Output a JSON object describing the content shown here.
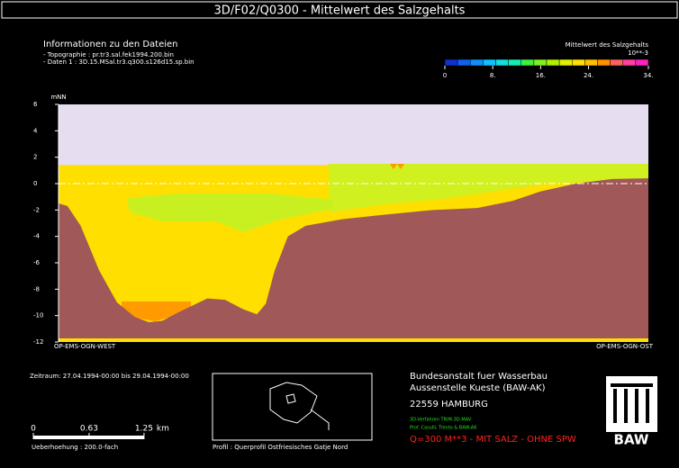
{
  "chart_data": {
    "type": "section",
    "title": "3D/F02/Q0300 - Mittelwert des Salzgehalts",
    "y_label": "mNN",
    "left_label": "OP-EMS-OGN-WEST",
    "right_label": "OP-EMS-OGN-OST",
    "ylim": [
      -12,
      6
    ],
    "yticks": [
      -12,
      -10,
      -8,
      -6,
      -4,
      -2,
      0,
      2,
      4,
      6
    ],
    "xlim": [
      0,
      6.66
    ],
    "x": [
      0,
      0.1,
      0.25,
      0.46,
      0.66,
      0.86,
      1.02,
      1.17,
      1.37,
      1.68,
      1.88,
      2.08,
      2.24,
      2.34,
      2.44,
      2.59,
      2.79,
      3.2,
      3.61,
      4.22,
      4.73,
      5.13,
      5.44,
      5.84,
      6.25,
      6.66
    ],
    "series": [
      {
        "name": "Topographie",
        "color": "#a05858",
        "values": [
          -1.5,
          -1.7,
          -3.2,
          -6.6,
          -9,
          -10.1,
          -10.5,
          -10.4,
          -9.7,
          -8.7,
          -8.8,
          -9.5,
          -9.9,
          -9.1,
          -6.6,
          -4,
          -3.2,
          -2.7,
          -2.4,
          -2,
          -1.85,
          -1.3,
          -0.6,
          0,
          0.35,
          0.4
        ]
      }
    ],
    "water_level": 1.4,
    "reference_line": 0,
    "colorbar": {
      "title": "Mittelwert des Salzgehalts",
      "unit": "10**-3",
      "clim": [
        0,
        34
      ],
      "colors": [
        "#1030d0",
        "#1060f0",
        "#1090ff",
        "#10c0ff",
        "#10e0e0",
        "#10f0b0",
        "#40f040",
        "#80f020",
        "#b0f000",
        "#e0f000",
        "#ffe000",
        "#ffc000",
        "#ff9000",
        "#ff6060",
        "#ff40a0",
        "#ff20c0"
      ],
      "ticks": [
        0,
        {
          "value": 8,
          "label": "8."
        },
        {
          "value": 16,
          "label": "16."
        },
        {
          "value": 24,
          "label": "24."
        },
        {
          "value": 34,
          "label": "34."
        }
      ]
    },
    "scale_bar": {
      "ticks": [
        0,
        0.63,
        1.25
      ],
      "unit": "km"
    }
  },
  "info": {
    "heading": "Informationen zu den Dateien",
    "lines": [
      "- Topographie : pr.tr3.sal.fek1994.200.bin",
      "- Daten 1 : 3D.15.MSal.tr3.q300.s126d15.sp.bin"
    ]
  },
  "footer": {
    "period": "Zeitraum: 27.04.1994-00:00 bis 29.04.1994-00:00",
    "exaggeration": "Ueberhoehung :   200.0-fach",
    "profile": "Profil : Querprofil Ostfriesisches Gatje Nord",
    "institute": [
      "Bundesanstalt fuer Wasserbau",
      "Aussenstelle Kueste (BAW-AK)",
      "22559 HAMBURG"
    ],
    "credits": [
      "3D-Verfahren TRIM-3D-MAV",
      "Prof. Casulli, Trento & BAW-AK"
    ],
    "run": "Q=300 M**3 - MIT SALZ - OHNE SPW",
    "logo": "BAW"
  }
}
